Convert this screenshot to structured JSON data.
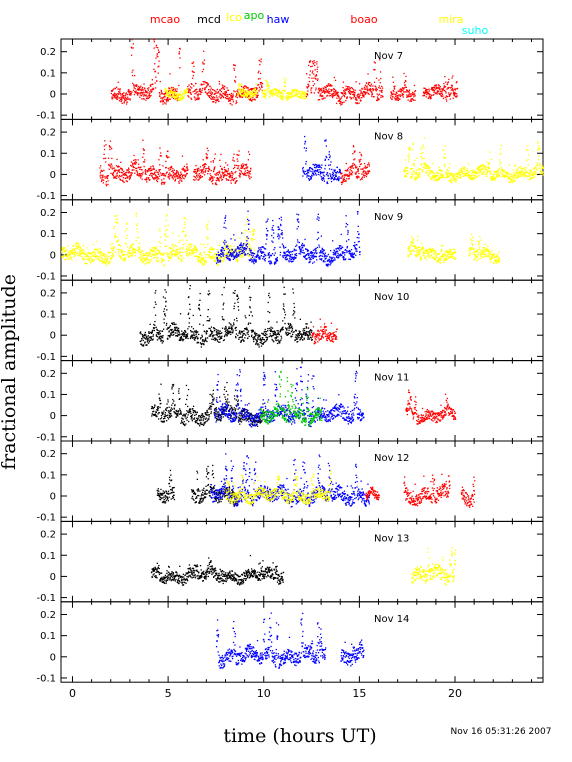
{
  "chart_data": {
    "type": "scatter",
    "xlabel": "time (hours UT)",
    "ylabel": "fractional amplitude",
    "timestamp": "Nov 16 05:31:26 2007",
    "xlim": [
      -0.6,
      24.6
    ],
    "ylim": [
      -0.12,
      0.26
    ],
    "x_ticks": [
      0,
      5,
      10,
      15,
      20
    ],
    "y_ticks": [
      -0.1,
      0,
      0.1,
      0.2
    ],
    "y_tick_labels": [
      "-0.1",
      "0",
      "0.1",
      "0.2"
    ],
    "stations": [
      {
        "name": "mcao",
        "color": "#ff0000"
      },
      {
        "name": "mcd",
        "color": "#000000"
      },
      {
        "name": "lco",
        "color": "#ffff00"
      },
      {
        "name": "apo",
        "color": "#00cc00"
      },
      {
        "name": "haw",
        "color": "#0000ff"
      },
      {
        "name": "boao",
        "color": "#ff0000"
      },
      {
        "name": "mira",
        "color": "#ffff00"
      },
      {
        "name": "suho",
        "color": "#00ffff"
      }
    ],
    "panels": [
      {
        "label": "Nov 7",
        "segments": [
          {
            "station": "mcao",
            "x": [
              2.0,
              5.6
            ],
            "amp": 0.05,
            "peak": 0.26
          },
          {
            "station": "lco",
            "x": [
              4.8,
              6.0
            ],
            "amp": 0.03,
            "peak": 0.08
          },
          {
            "station": "mcao",
            "x": [
              6.0,
              9.9
            ],
            "amp": 0.05,
            "peak": 0.2
          },
          {
            "station": "lco",
            "x": [
              8.6,
              9.6
            ],
            "amp": 0.03,
            "peak": 0.06
          },
          {
            "station": "lco",
            "x": [
              9.9,
              12.2
            ],
            "amp": 0.03,
            "peak": 0.1
          },
          {
            "station": "boao",
            "x": [
              12.2,
              16.2
            ],
            "amp": 0.05,
            "peak": 0.16
          },
          {
            "station": "boao",
            "x": [
              16.6,
              17.9
            ],
            "amp": 0.04,
            "peak": 0.1
          },
          {
            "station": "boao",
            "x": [
              18.3,
              20.1
            ],
            "amp": 0.04,
            "peak": 0.1
          }
        ]
      },
      {
        "label": "Nov 8",
        "segments": [
          {
            "station": "mcao",
            "x": [
              1.4,
              4.2
            ],
            "amp": 0.05,
            "peak": 0.22
          },
          {
            "station": "mcao",
            "x": [
              4.2,
              6.0
            ],
            "amp": 0.05,
            "peak": 0.18
          },
          {
            "station": "mcao",
            "x": [
              6.3,
              9.3
            ],
            "amp": 0.05,
            "peak": 0.13
          },
          {
            "station": "haw",
            "x": [
              12.0,
              14.0
            ],
            "amp": 0.05,
            "peak": 0.21
          },
          {
            "station": "boao",
            "x": [
              14.0,
              15.5
            ],
            "amp": 0.05,
            "peak": 0.12
          },
          {
            "station": "mira",
            "x": [
              17.3,
              24.6
            ],
            "amp": 0.04,
            "peak": 0.16
          }
        ]
      },
      {
        "label": "Nov 9",
        "segments": [
          {
            "station": "mira",
            "x": [
              -0.6,
              7.5
            ],
            "amp": 0.05,
            "peak": 0.2
          },
          {
            "station": "lco",
            "x": [
              7.5,
              9.5
            ],
            "amp": 0.05,
            "peak": 0.17
          },
          {
            "station": "haw",
            "x": [
              7.5,
              15.0
            ],
            "amp": 0.05,
            "peak": 0.21
          },
          {
            "station": "mira",
            "x": [
              17.5,
              20.0
            ],
            "amp": 0.04,
            "peak": 0.08
          },
          {
            "station": "mira",
            "x": [
              20.7,
              22.3
            ],
            "amp": 0.04,
            "peak": 0.1
          }
        ]
      },
      {
        "label": "Nov 10",
        "segments": [
          {
            "station": "mcd",
            "x": [
              3.5,
              12.5
            ],
            "amp": 0.05,
            "peak": 0.23
          },
          {
            "station": "mcao",
            "x": [
              12.5,
              13.8
            ],
            "amp": 0.04,
            "peak": 0.06
          }
        ]
      },
      {
        "label": "Nov 11",
        "segments": [
          {
            "station": "mcd",
            "x": [
              4.1,
              7.5
            ],
            "amp": 0.05,
            "peak": 0.15
          },
          {
            "station": "mcd",
            "x": [
              7.5,
              10.0
            ],
            "amp": 0.05,
            "peak": 0.15
          },
          {
            "station": "haw",
            "x": [
              7.4,
              15.2
            ],
            "amp": 0.05,
            "peak": 0.23
          },
          {
            "station": "apo",
            "x": [
              9.8,
              13.0
            ],
            "amp": 0.05,
            "peak": 0.2
          },
          {
            "station": "boao",
            "x": [
              17.4,
              20.0
            ],
            "amp": 0.04,
            "peak": 0.12
          }
        ]
      },
      {
        "label": "Nov 12",
        "segments": [
          {
            "station": "mcd",
            "x": [
              4.4,
              5.3
            ],
            "amp": 0.05,
            "peak": 0.12
          },
          {
            "station": "mcd",
            "x": [
              6.2,
              8.6
            ],
            "amp": 0.05,
            "peak": 0.13
          },
          {
            "station": "haw",
            "x": [
              7.2,
              15.5
            ],
            "amp": 0.05,
            "peak": 0.19
          },
          {
            "station": "lco",
            "x": [
              8.0,
              13.5
            ],
            "amp": 0.04,
            "peak": 0.12
          },
          {
            "station": "boao",
            "x": [
              15.3,
              16.0
            ],
            "amp": 0.03,
            "peak": 0.05
          },
          {
            "station": "boao",
            "x": [
              17.3,
              19.7
            ],
            "amp": 0.05,
            "peak": 0.12
          },
          {
            "station": "boao",
            "x": [
              20.3,
              21.0
            ],
            "amp": 0.05,
            "peak": 0.1
          }
        ]
      },
      {
        "label": "Nov 13",
        "segments": [
          {
            "station": "mcd",
            "x": [
              4.1,
              11.0
            ],
            "amp": 0.04,
            "peak": 0.06
          },
          {
            "station": "mira",
            "x": [
              17.7,
              20.0
            ],
            "amp": 0.05,
            "peak": 0.16
          }
        ]
      },
      {
        "label": "Nov 14",
        "segments": [
          {
            "station": "haw",
            "x": [
              7.5,
              13.2
            ],
            "amp": 0.05,
            "peak": 0.2
          },
          {
            "station": "haw",
            "x": [
              14.0,
              15.2
            ],
            "amp": 0.05,
            "peak": 0.06
          }
        ]
      }
    ]
  }
}
